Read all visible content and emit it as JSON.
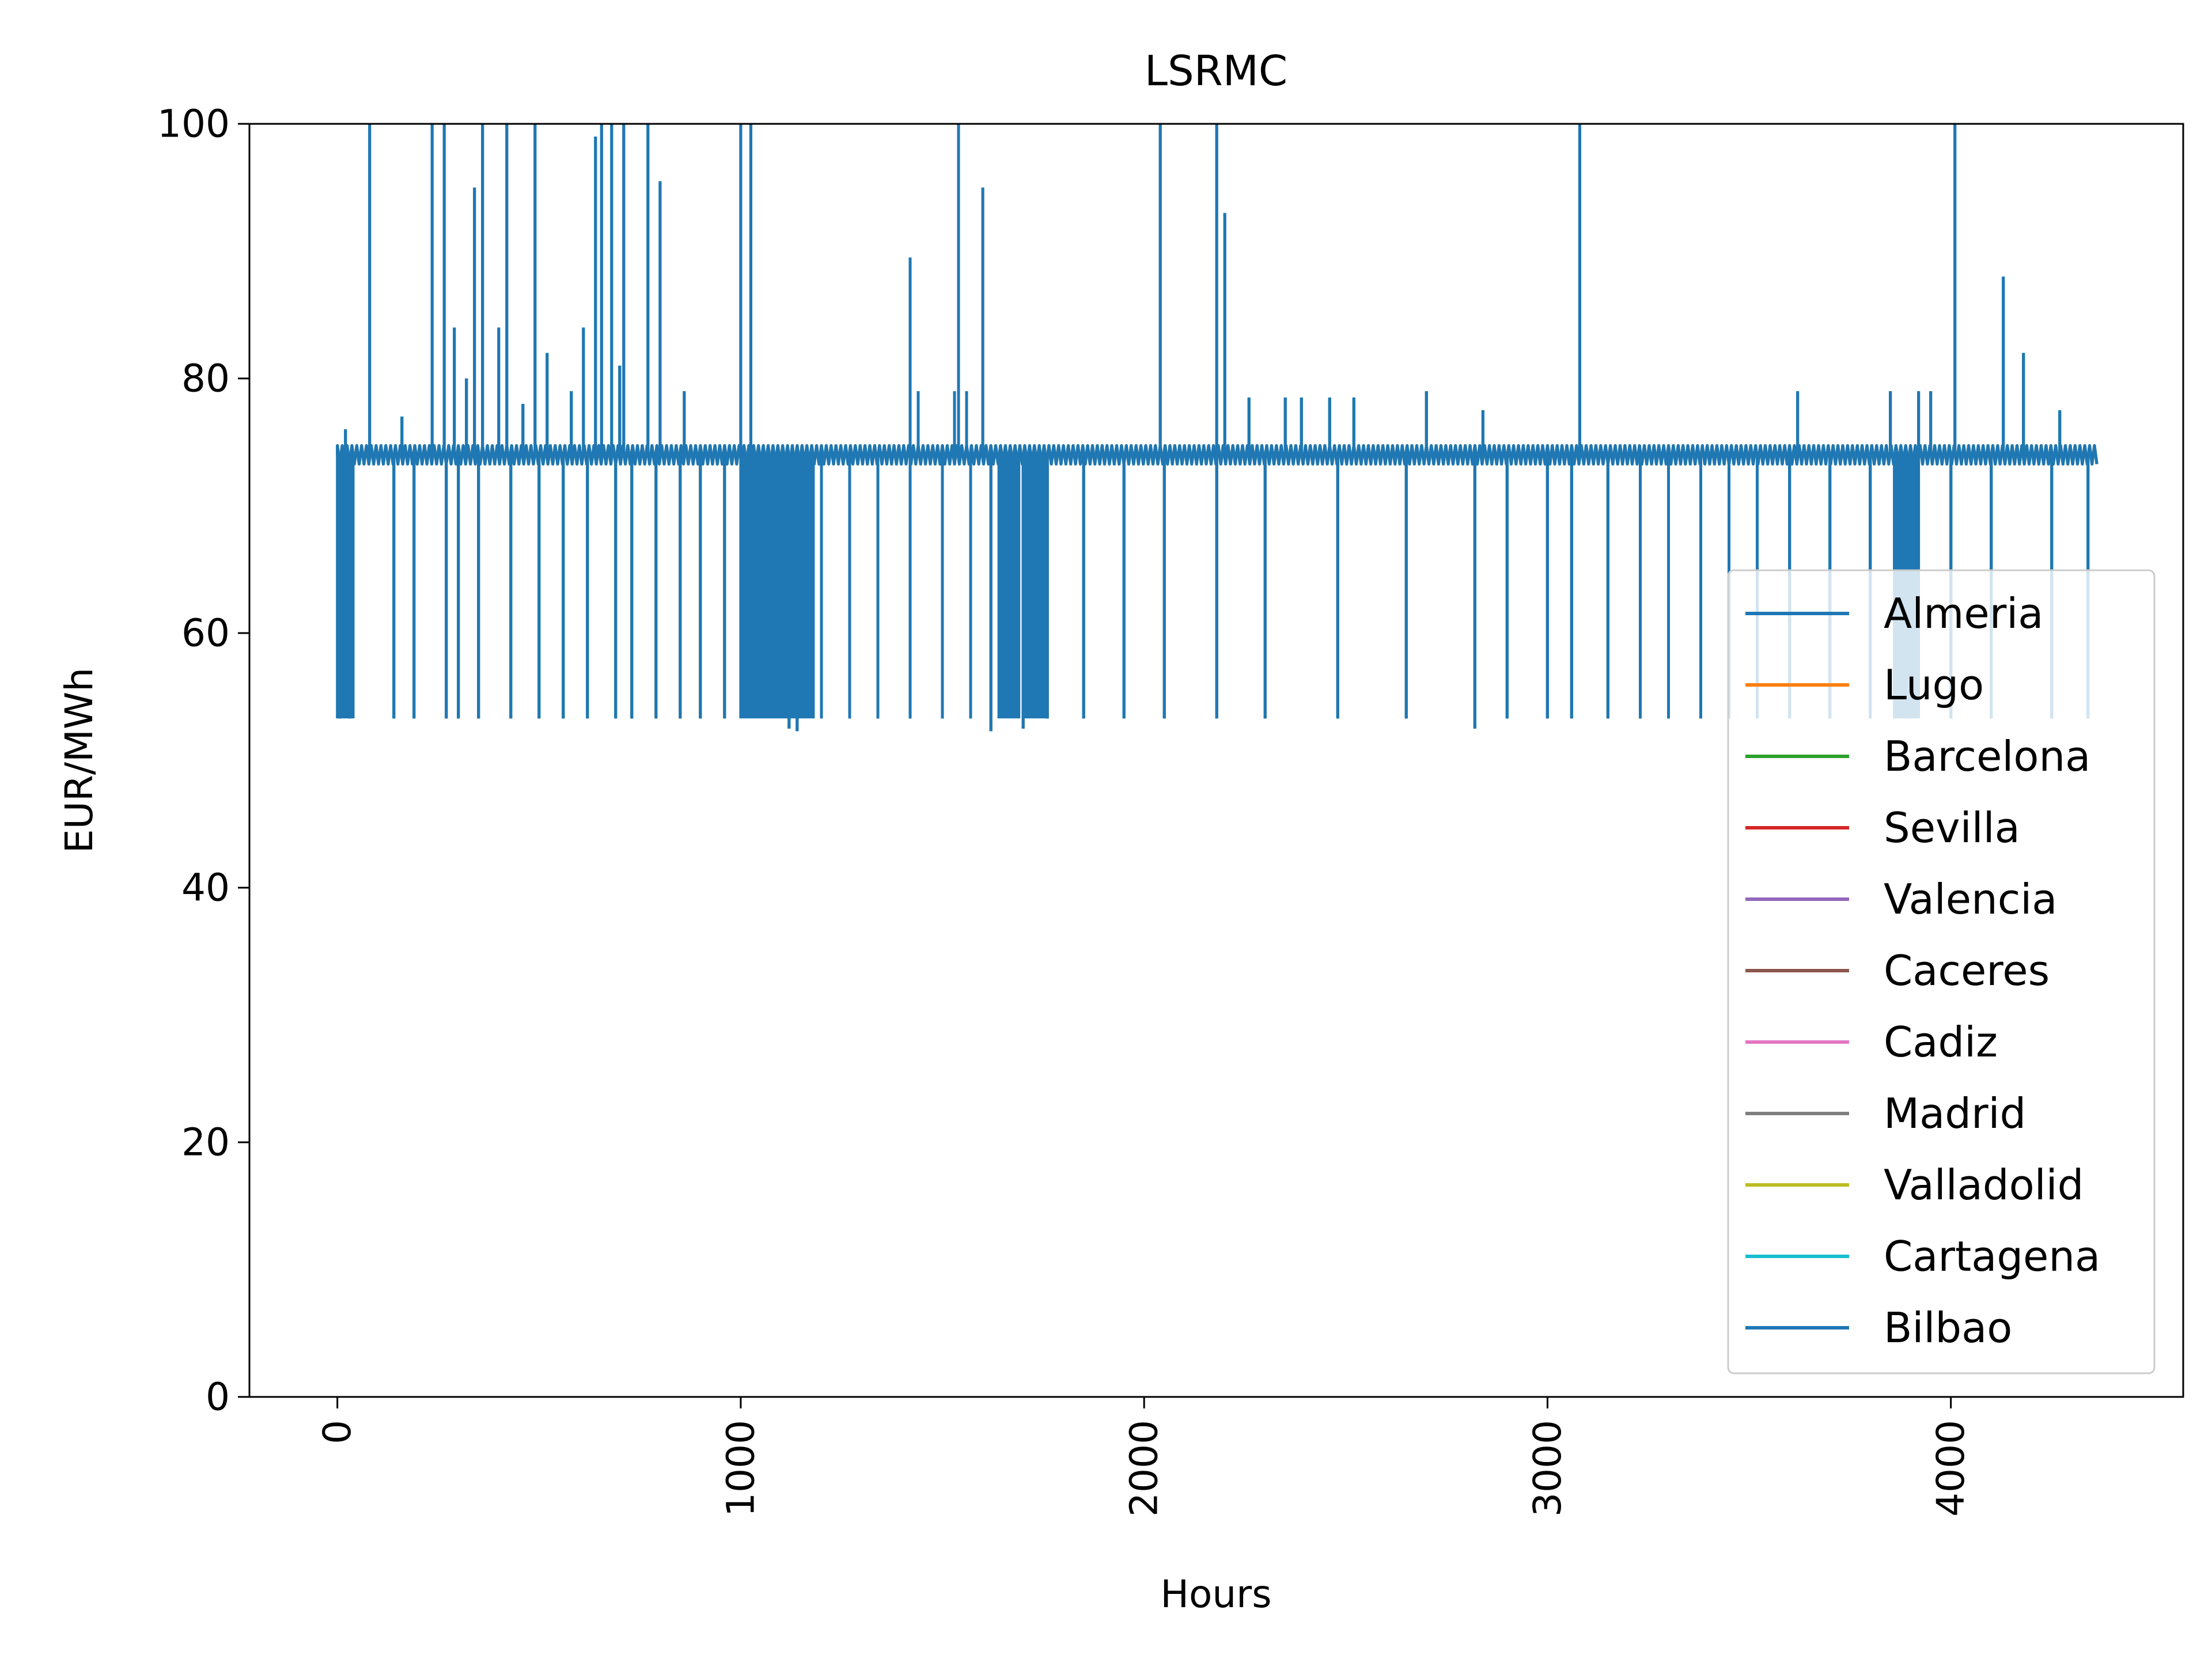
{
  "chart_data": {
    "type": "line",
    "title": "LSRMC",
    "xlabel": "Hours",
    "ylabel": "EUR/MWh",
    "xlim": [
      -218,
      4576
    ],
    "ylim": [
      0,
      100
    ],
    "xticks": [
      0,
      1000,
      2000,
      3000,
      4000
    ],
    "xtick_labels": [
      "0",
      "1000",
      "2000",
      "3000",
      "4000"
    ],
    "xtick_rotation": 90,
    "yticks": [
      0,
      20,
      40,
      60,
      80,
      100
    ],
    "ytick_labels": [
      "0",
      "20",
      "40",
      "60",
      "80",
      "100"
    ],
    "grid": false,
    "legend_position": "center-right",
    "x_range": [
      0,
      4367
    ],
    "series": [
      {
        "name": "Almeria",
        "color": "#1f77b4",
        "base": 74,
        "low": 53.3
      },
      {
        "name": "Lugo",
        "color": "#ff7f0e",
        "base": 74,
        "low": 53.3
      },
      {
        "name": "Barcelona",
        "color": "#2ca02c",
        "base": 74,
        "low": 53.3
      },
      {
        "name": "Sevilla",
        "color": "#d62728",
        "base": 74,
        "low": 53.3
      },
      {
        "name": "Valencia",
        "color": "#9467bd",
        "base": 74,
        "low": 53.3
      },
      {
        "name": "Caceres",
        "color": "#8c564b",
        "base": 74,
        "low": 53.3
      },
      {
        "name": "Cadiz",
        "color": "#e377c2",
        "base": 74,
        "low": 53.3
      },
      {
        "name": "Madrid",
        "color": "#7f7f7f",
        "base": 74,
        "low": 53.3
      },
      {
        "name": "Valladolid",
        "color": "#bcbd22",
        "base": 74,
        "low": 53.3
      },
      {
        "name": "Cartagena",
        "color": "#17becf",
        "base": 74,
        "low": 53.3
      },
      {
        "name": "Bilbao",
        "color": "#1f77b4",
        "base": 74,
        "low": 53.3
      }
    ],
    "spikes_high": [
      [
        80,
        100
      ],
      [
        235,
        100
      ],
      [
        265,
        100
      ],
      [
        290,
        84
      ],
      [
        340,
        95
      ],
      [
        360,
        100
      ],
      [
        400,
        84
      ],
      [
        420,
        100
      ],
      [
        490,
        100
      ],
      [
        610,
        84
      ],
      [
        640,
        99
      ],
      [
        655,
        100
      ],
      [
        680,
        100
      ],
      [
        710,
        100
      ],
      [
        770,
        100
      ],
      [
        800,
        95.5
      ],
      [
        1000,
        100
      ],
      [
        1025,
        100
      ],
      [
        1420,
        89.5
      ],
      [
        1540,
        100
      ],
      [
        1600,
        95
      ],
      [
        2040,
        100
      ],
      [
        2180,
        100
      ],
      [
        2200,
        93
      ],
      [
        3080,
        100
      ],
      [
        4010,
        100
      ],
      [
        4130,
        88
      ]
    ],
    "spikes_mid": [
      [
        20,
        76
      ],
      [
        160,
        77
      ],
      [
        320,
        80
      ],
      [
        460,
        78
      ],
      [
        520,
        82
      ],
      [
        580,
        79
      ],
      [
        700,
        81
      ],
      [
        860,
        79
      ],
      [
        1440,
        79
      ],
      [
        1530,
        79
      ],
      [
        1560,
        79
      ],
      [
        2260,
        78.5
      ],
      [
        2350,
        78.5
      ],
      [
        2390,
        78.5
      ],
      [
        2460,
        78.5
      ],
      [
        2520,
        78.5
      ],
      [
        2700,
        79
      ],
      [
        2840,
        77.5
      ],
      [
        3620,
        79
      ],
      [
        3850,
        79
      ],
      [
        3920,
        79
      ],
      [
        3950,
        79
      ],
      [
        4180,
        82
      ],
      [
        4270,
        77.5
      ]
    ],
    "spikes_low": [
      [
        5,
        53.3
      ],
      [
        30,
        53.3
      ],
      [
        140,
        53.3
      ],
      [
        190,
        53.3
      ],
      [
        270,
        53.3
      ],
      [
        300,
        53.3
      ],
      [
        350,
        53.3
      ],
      [
        430,
        53.3
      ],
      [
        500,
        53.3
      ],
      [
        560,
        53.3
      ],
      [
        620,
        53.3
      ],
      [
        690,
        53.3
      ],
      [
        730,
        53.3
      ],
      [
        790,
        53.3
      ],
      [
        850,
        53.3
      ],
      [
        900,
        53.3
      ],
      [
        960,
        53.3
      ],
      [
        1120,
        52.5
      ],
      [
        1140,
        52.3
      ],
      [
        1200,
        53.3
      ],
      [
        1270,
        53.3
      ],
      [
        1340,
        53.3
      ],
      [
        1420,
        53.3
      ],
      [
        1500,
        53.3
      ],
      [
        1570,
        53.3
      ],
      [
        1620,
        52.3
      ],
      [
        1700,
        52.5
      ],
      [
        1760,
        53.3
      ],
      [
        1850,
        53.3
      ],
      [
        1950,
        53.3
      ],
      [
        2050,
        53.3
      ],
      [
        2180,
        53.3
      ],
      [
        2300,
        53.3
      ],
      [
        2480,
        53.3
      ],
      [
        2650,
        53.3
      ],
      [
        2820,
        52.5
      ],
      [
        2900,
        53.3
      ],
      [
        3000,
        53.3
      ],
      [
        3060,
        53.3
      ],
      [
        3150,
        53.3
      ],
      [
        3230,
        53.3
      ],
      [
        3300,
        53.3
      ],
      [
        3380,
        53.3
      ],
      [
        3450,
        53.3
      ],
      [
        3520,
        53.3
      ],
      [
        3600,
        53.3
      ],
      [
        3700,
        53.3
      ],
      [
        3800,
        53.3
      ],
      [
        3900,
        53.3
      ],
      [
        4000,
        53.3
      ],
      [
        4100,
        53.3
      ],
      [
        4250,
        53.3
      ],
      [
        4340,
        53.3
      ]
    ],
    "dense_regions": [
      [
        0,
        40
      ],
      [
        1000,
        1180
      ],
      [
        1640,
        1690
      ],
      [
        1700,
        1760
      ],
      [
        3860,
        3920
      ]
    ]
  }
}
